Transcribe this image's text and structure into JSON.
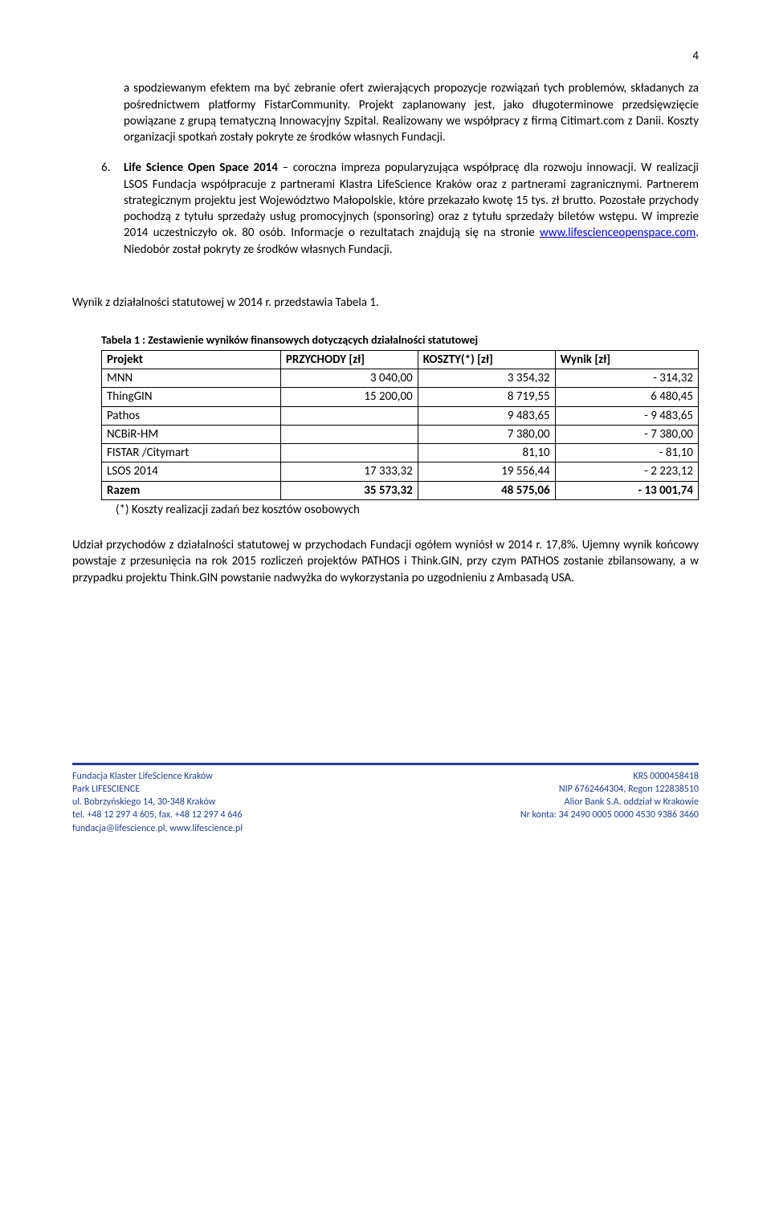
{
  "pageNumber": "4",
  "para5": "a spodziewanym efektem ma być zebranie ofert zwierających propozycje rozwiązań tych problemów, składanych za pośrednictwem platformy FistarCommunity. Projekt zaplanowany jest, jako długoterminowe przedsięwzięcie powiązane z grupą tematyczną Innowacyjny Szpital. Realizowany we współpracy z firmą Citimart.com z Danii. Koszty organizacji spotkań zostały pokryte ze środków własnych Fundacji.",
  "item6": {
    "num": "6.",
    "title": "Life Science Open Space 2014",
    "textA": " – coroczna impreza popularyzująca współpracę dla rozwoju innowacji. W realizacji LSOS Fundacja współpracuje z partnerami Klastra LifeScience Kraków oraz z partnerami zagranicznymi. Partnerem strategicznym projektu jest Województwo Małopolskie, które przekazało kwotę 15 tys. zł brutto. Pozostałe przychody pochodzą z tytułu sprzedaży usług promocyjnych (sponsoring) oraz z tytułu sprzedaży biletów wstępu. W imprezie 2014 uczestniczyło ok. 80 osób. Informacje o rezultatach znajdują się na stronie ",
    "link": "www.lifescienceopenspace.com",
    "textB": ". Niedobór został pokryty ze środków własnych Fundacji."
  },
  "sectionLine": "Wynik z działalności statutowej w 2014 r. przedstawia Tabela 1.",
  "tableCaption": "Tabela 1 : Zestawienie wyników finansowych dotyczących działalności statutowej",
  "table": {
    "headers": [
      "Projekt",
      "PRZYCHODY [zł]",
      "KOSZTY(*) [zł]",
      "Wynik  [zł]"
    ],
    "rows": [
      {
        "name": "MNN",
        "p": "3 040,00",
        "k": "3 354,32",
        "w": "-       314,32"
      },
      {
        "name": "ThingGIN",
        "p": "15 200,00",
        "k": "8 719,55",
        "w": "6 480,45"
      },
      {
        "name": "Pathos",
        "p": "",
        "k": "9 483,65",
        "w": "-    9 483,65"
      },
      {
        "name": "NCBiR-HM",
        "p": "",
        "k": "7 380,00",
        "w": "-    7 380,00"
      },
      {
        "name": "FISTAR /Citymart",
        "p": "",
        "k": "81,10",
        "w": "-         81,10"
      },
      {
        "name": "LSOS 2014",
        "p": "17 333,32",
        "k": "19 556,44",
        "w": "-    2 223,12"
      }
    ],
    "total": {
      "name": "Razem",
      "p": "35 573,32",
      "k": "48 575,06",
      "w": "-  13 001,74"
    }
  },
  "tableNote": "(*) Koszty realizacji zadań bez kosztów osobowych",
  "afterTable": "Udział przychodów z działalności statutowej w przychodach Fundacji ogółem wyniósł w 2014 r. 17,8%. Ujemny wynik końcowy powstaje z przesunięcia na rok 2015 rozliczeń projektów PATHOS i Think.GIN, przy czym PATHOS zostanie zbilansowany, a w przypadku projektu Think.GIN powstanie nadwyżka do wykorzystania po uzgodnieniu z Ambasadą USA.",
  "footer": {
    "left": [
      "Fundacja Klaster LifeScience Kraków",
      "Park LIFESCIENCE",
      "ul. Bobrzyńskiego 14, 30-348 Kraków",
      "tel. +48 12 297 4 605,    fax. +48 12 297 4 646",
      "fundacja@lifescience.pl, www.lifescience.pl"
    ],
    "right": [
      "KRS 0000458418",
      "NIP  6762464304,   Regon 122838510",
      "Alior Bank S.A. oddział w Krakowie",
      "Nr konta: 34 2490 0005 0000 4530 9386 3460"
    ]
  }
}
